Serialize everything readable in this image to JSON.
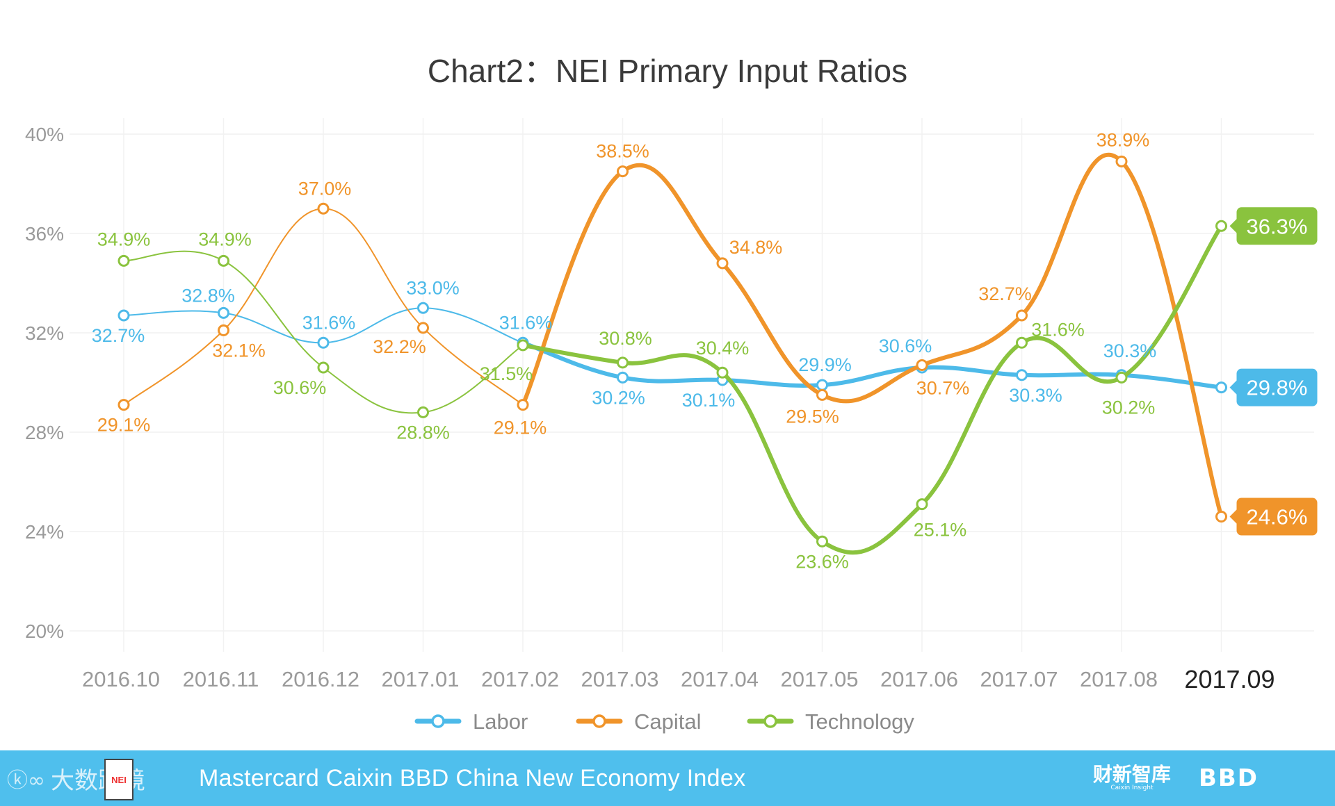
{
  "chart_data": {
    "type": "line",
    "title": "Chart2：NEI Primary Input Ratios",
    "categories": [
      "2016.10",
      "2016.11",
      "2016.12",
      "2017.01",
      "2017.02",
      "2017.03",
      "2017.04",
      "2017.05",
      "2017.06",
      "2017.07",
      "2017.08",
      "2017.09"
    ],
    "y_ticks": [
      "20%",
      "24%",
      "28%",
      "32%",
      "36%",
      "40%"
    ],
    "ylim": [
      20,
      40
    ],
    "unit": "%",
    "grid": true,
    "legend_position": "bottom-center",
    "series": [
      {
        "name": "Labor",
        "color": "#4dbae9",
        "values": [
          32.7,
          32.8,
          31.6,
          33.0,
          31.6,
          30.2,
          30.1,
          29.9,
          30.6,
          30.3,
          30.3,
          29.8
        ],
        "labels": [
          "32.7%",
          "32.8%",
          "31.6%",
          "33.0%",
          "31.6%",
          "30.2%",
          "30.1%",
          "29.9%",
          "30.6%",
          "30.3%",
          "30.3%",
          "29.8%"
        ]
      },
      {
        "name": "Capital",
        "color": "#f0942a",
        "values": [
          29.1,
          32.1,
          37.0,
          32.2,
          29.1,
          38.5,
          34.8,
          29.5,
          30.7,
          32.7,
          38.9,
          24.6
        ],
        "labels": [
          "29.1%",
          "32.1%",
          "37.0%",
          "32.2%",
          "29.1%",
          "38.5%",
          "34.8%",
          "29.5%",
          "30.7%",
          "32.7%",
          "38.9%",
          "24.6%"
        ]
      },
      {
        "name": "Technology",
        "color": "#8ac33e",
        "values": [
          34.9,
          34.9,
          30.6,
          28.8,
          31.5,
          30.8,
          30.4,
          23.6,
          25.1,
          31.6,
          30.2,
          36.3
        ],
        "labels": [
          "34.9%",
          "34.9%",
          "30.6%",
          "28.8%",
          "31.5%",
          "30.8%",
          "30.4%",
          "23.6%",
          "25.1%",
          "31.6%",
          "30.2%",
          "36.3%"
        ]
      }
    ]
  },
  "footer": {
    "logo_mark": "ⓚ∞",
    "logo_text": "大数跨境",
    "badge_text": "NEI",
    "title": "Mastercard Caixin BBD China New Economy Index",
    "brand_cn": "财新智库",
    "brand_sub": "Caixin Insight",
    "brand_bbd": "BBD"
  }
}
